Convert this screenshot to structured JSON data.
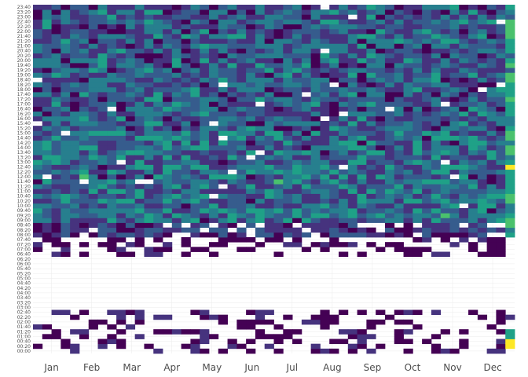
{
  "chart_data": {
    "type": "heatmap",
    "title": "",
    "xlabel": "",
    "ylabel": "",
    "x_tick_labels": [
      "Jan",
      "Feb",
      "Mar",
      "Apr",
      "May",
      "Jun",
      "Jul",
      "Aug",
      "Sep",
      "Oct",
      "Nov",
      "Dec"
    ],
    "y_tick_labels": [
      "00:00",
      "00:20",
      "00:40",
      "01:00",
      "01:20",
      "01:40",
      "02:00",
      "02:20",
      "02:40",
      "03:00",
      "03:20",
      "03:40",
      "04:00",
      "04:20",
      "04:40",
      "05:00",
      "05:20",
      "05:40",
      "06:00",
      "06:20",
      "06:40",
      "07:00",
      "07:20",
      "07:40",
      "08:00",
      "08:20",
      "08:40",
      "09:00",
      "09:20",
      "09:40",
      "10:00",
      "10:20",
      "10:40",
      "11:00",
      "11:20",
      "11:40",
      "12:00",
      "12:20",
      "12:40",
      "13:00",
      "13:20",
      "13:40",
      "14:00",
      "14:20",
      "14:40",
      "15:00",
      "15:20",
      "15:40",
      "16:00",
      "16:20",
      "16:40",
      "17:00",
      "17:20",
      "17:40",
      "18:00",
      "18:20",
      "18:40",
      "19:00",
      "19:20",
      "19:40",
      "20:00",
      "20:20",
      "20:40",
      "21:00",
      "21:20",
      "21:40",
      "22:00",
      "22:20",
      "22:40",
      "23:00",
      "23:20",
      "23:40"
    ],
    "weeks": 52,
    "time_slots": 72,
    "color_scale": [
      "#440154",
      "#46337e",
      "#365c8d",
      "#277f8e",
      "#1fa187",
      "#4ac16d",
      "#a0da39",
      "#fde725"
    ],
    "missing_color": "#ffffff",
    "grid": true,
    "legend": "none",
    "values": "52 weekly columns x 72 twenty-minute rows, normalized 0-1 intensity; no nighttime readings 03:00-06:20, sparse 00:00-03:00 and 06:20-08:00, dense 08:00-23:40; December column contains high (yellow) values around 00:00-00:40 and 12:40"
  }
}
